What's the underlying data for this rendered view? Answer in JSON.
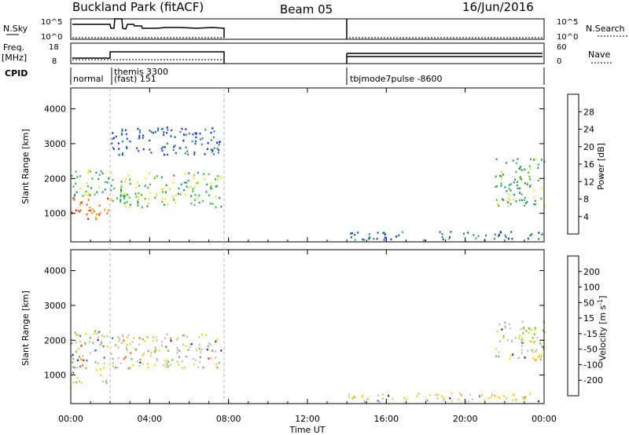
{
  "header": {
    "title": "Buckland Park (fitACF)",
    "beam": "Beam 05",
    "date": "16/Jun/2016"
  },
  "strips": {
    "nsky_label": "N.Sky",
    "nsky_ticks": [
      "10^5",
      "10^0"
    ],
    "nsearch_label": "N.Search",
    "nsearch_ticks": [
      "10^5",
      "10^0"
    ],
    "freq_label_1": "Freq.",
    "freq_label_2": "[MHz]",
    "freq_ticks": [
      "18",
      "8"
    ],
    "nave_label": "Nave",
    "nave_ticks": [
      "60",
      "0"
    ],
    "cpid_label": "CPID",
    "cpid_segments": [
      "normal",
      "themis 3300",
      "(fast) 151",
      "tbjmode7pulse -8600"
    ]
  },
  "panels": {
    "ylabel": "Slant Range [km]",
    "yticks": [
      "1000",
      "2000",
      "3000",
      "4000"
    ],
    "xlabel": "Time UT",
    "xticks": [
      "00:00",
      "04:00",
      "08:00",
      "12:00",
      "16:00",
      "20:00",
      "00:00"
    ]
  },
  "chart_data": [
    {
      "type": "heatmap",
      "title": "",
      "xlabel": "Time UT",
      "ylabel": "Slant Range [km]",
      "xlim": [
        "00:00",
        "24:00"
      ],
      "ylim": [
        180,
        4600
      ],
      "colorbar": {
        "label": "Power [dB]",
        "ticks": [
          4,
          8,
          12,
          16,
          20,
          24,
          28
        ],
        "colors": [
          "#1a1aff",
          "#1f4fb0",
          "#2f8a78",
          "#46b649",
          "#f2e424",
          "#f5a41b",
          "#f06418",
          "#e81412"
        ]
      },
      "regions": [
        {
          "t": [
            0.0,
            1.9
          ],
          "r": [
            800,
            1500
          ],
          "level": 25
        },
        {
          "t": [
            0.0,
            1.9
          ],
          "r": [
            1500,
            2300
          ],
          "level": 14
        },
        {
          "t": [
            2.0,
            7.6
          ],
          "r": [
            1200,
            2200
          ],
          "level": 15
        },
        {
          "t": [
            2.0,
            7.6
          ],
          "r": [
            2700,
            3500
          ],
          "level": 7
        },
        {
          "t": [
            14.0,
            24.0
          ],
          "r": [
            250,
            500
          ],
          "level": 8
        },
        {
          "t": [
            21.5,
            24.0
          ],
          "r": [
            1200,
            2600
          ],
          "level": 13
        }
      ]
    },
    {
      "type": "heatmap",
      "title": "",
      "xlabel": "Time UT",
      "ylabel": "Slant Range [km]",
      "xlim": [
        "00:00",
        "24:00"
      ],
      "ylim": [
        180,
        4600
      ],
      "colorbar": {
        "label": "Velocity [m s^-1]",
        "ticks": [
          200,
          100,
          50,
          15,
          -15,
          -50,
          -100,
          -200
        ],
        "colors": [
          "#1a1ab0",
          "#2f6ad8",
          "#1f9a3a",
          "#6cc04a",
          "#bdbdbd",
          "#f5d21b",
          "#f5a41b",
          "#f06418",
          "#e81412"
        ]
      },
      "regions": [
        {
          "t": [
            0.0,
            1.9
          ],
          "r": [
            800,
            2300
          ],
          "level": 0
        },
        {
          "t": [
            2.0,
            7.6
          ],
          "r": [
            1200,
            2200
          ],
          "level": 0
        },
        {
          "t": [
            14.0,
            24.0
          ],
          "r": [
            250,
            500
          ],
          "level": -30
        },
        {
          "t": [
            21.5,
            24.0
          ],
          "r": [
            1400,
            2600
          ],
          "level": 0
        }
      ]
    }
  ]
}
